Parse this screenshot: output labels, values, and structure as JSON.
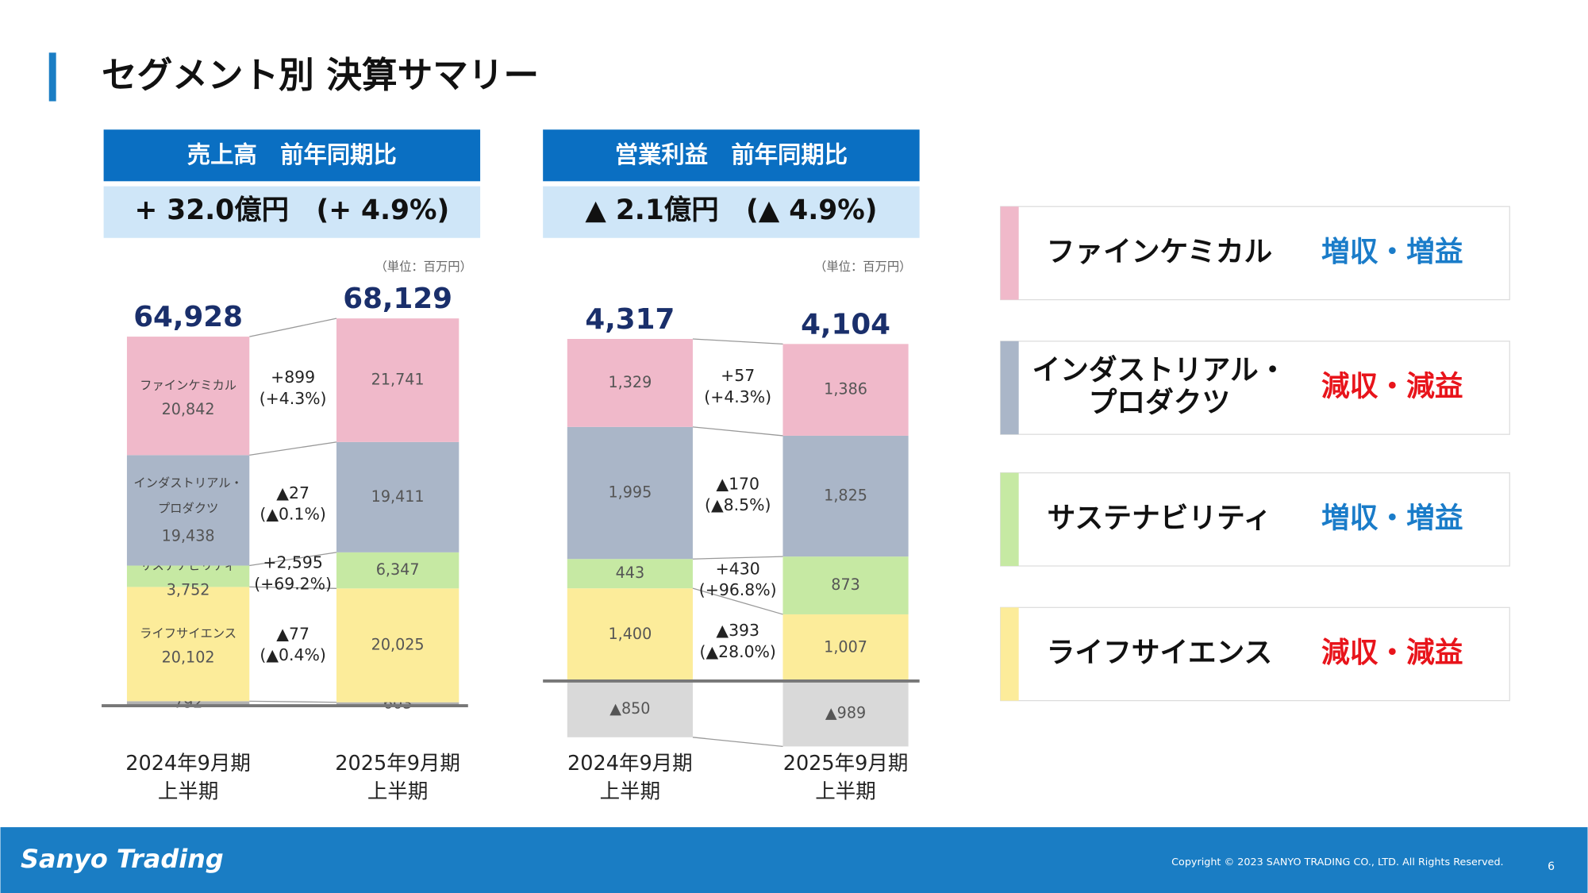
{
  "title": "セグメント別 決算サマリー",
  "chart_data": [
    {
      "type": "stacked-bar",
      "header": "売上高　前年同期比",
      "summary": "+ 32.0億円　(+ 4.9%)",
      "unit": "（単位：百万円）",
      "categories": [
        [
          "2024年9月期",
          "上半期"
        ],
        [
          "2025年9月期",
          "上半期"
        ]
      ],
      "totals": [
        64928,
        68129
      ],
      "total_labels": [
        "64,928",
        "68,129"
      ],
      "ylim": [
        0,
        70000
      ],
      "series": [
        {
          "color": "#b3b3b3",
          "values": [
            792,
            603
          ]
        },
        {
          "name": "ライフサイエンス",
          "color": "#fcec9a",
          "values": [
            20102,
            20025
          ],
          "value_labels": [
            "20,102",
            "20,025"
          ],
          "change": [
            "▲77",
            "(▲0.4%)"
          ]
        },
        {
          "name": "サステナビリティ",
          "color": "#c6e9a3",
          "values": [
            3752,
            6347
          ],
          "value_labels": [
            "3,752",
            "6,347"
          ],
          "change": [
            "+2,595",
            "(+69.2%)"
          ]
        },
        {
          "name": [
            "インダストリアル・",
            "プロダクツ"
          ],
          "color": "#aab6c8",
          "values": [
            19438,
            19411
          ],
          "value_labels": [
            "19,438",
            "19,411"
          ],
          "change": [
            "▲27",
            "(▲0.1%)"
          ]
        },
        {
          "name": "ファインケミカル",
          "color": "#f0b9ca",
          "values": [
            20842,
            21741
          ],
          "value_labels": [
            "20,842",
            "21,741"
          ],
          "change": [
            "+899",
            "(+4.3%)"
          ]
        }
      ]
    },
    {
      "type": "stacked-bar",
      "header": "営業利益　前年同期比",
      "summary": "▲ 2.1億円　(▲ 4.9%)",
      "unit": "（単位：百万円）",
      "categories": [
        [
          "2024年9月期",
          "上半期"
        ],
        [
          "2025年9月期",
          "上半期"
        ]
      ],
      "totals": [
        4317,
        4104
      ],
      "total_labels": [
        "4,317",
        "4,104"
      ],
      "ylim": [
        -1000,
        5500
      ],
      "series": [
        {
          "color": "#d9d9d9",
          "values": [
            -850,
            -989
          ],
          "value_labels": [
            "▲850",
            "▲989"
          ]
        },
        {
          "color": "#fcec9a",
          "values": [
            1400,
            1007
          ],
          "value_labels": [
            "1,400",
            "1,007"
          ],
          "change": [
            "▲393",
            "(▲28.0%)"
          ]
        },
        {
          "color": "#c6e9a3",
          "values": [
            443,
            873
          ],
          "change": [
            "+430",
            "(+96.8%)"
          ]
        },
        {
          "color": "#aab6c8",
          "values": [
            1995,
            1825
          ],
          "value_labels": [
            "1,995",
            "1,825"
          ],
          "change": [
            "▲170",
            "(▲8.5%)"
          ]
        },
        {
          "color": "#f0b9ca",
          "values": [
            1329,
            1386
          ],
          "value_labels": [
            "1,329",
            "1,386"
          ],
          "change": [
            "+57",
            "(+4.3%)"
          ]
        }
      ]
    }
  ],
  "segments": [
    {
      "name": "ファインケミカル",
      "result": "増収・増益",
      "color": "#f0b9ca",
      "result_color": "#1a7cc9"
    },
    {
      "name": [
        "インダストリアル・",
        "プロダクツ"
      ],
      "result": "減収・減益",
      "color": "#aab6c8",
      "result_color": "#e8141b"
    },
    {
      "name": "サステナビリティ",
      "result": "増収・増益",
      "color": "#c6e9a3",
      "result_color": "#1a7cc9"
    },
    {
      "name": "ライフサイエンス",
      "result": "減収・減益",
      "color": "#fcec9a",
      "result_color": "#e8141b"
    }
  ],
  "footer": {
    "logo": "Sanyo Trading",
    "copyright": "Copyright © 2023 SANYO TRADING CO., LTD. All Rights Reserved.",
    "page": "6"
  }
}
